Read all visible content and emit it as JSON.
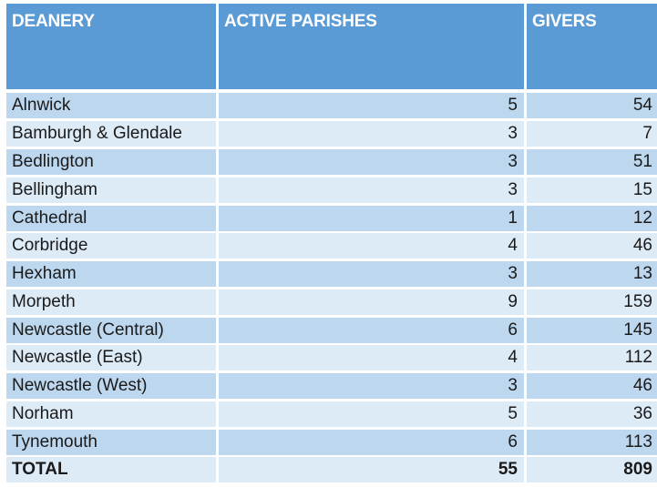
{
  "headers": {
    "deanery": "DEANERY",
    "active_parishes": "ACTIVE PARISHES",
    "givers": "GIVERS"
  },
  "rows": [
    {
      "deanery": "Alnwick",
      "active_parishes": "5",
      "givers": "54"
    },
    {
      "deanery": "Bamburgh & Glendale",
      "active_parishes": "3",
      "givers": "7"
    },
    {
      "deanery": "Bedlington",
      "active_parishes": "3",
      "givers": "51"
    },
    {
      "deanery": "Bellingham",
      "active_parishes": "3",
      "givers": "15"
    },
    {
      "deanery": "Cathedral",
      "active_parishes": "1",
      "givers": "12"
    },
    {
      "deanery": "Corbridge",
      "active_parishes": "4",
      "givers": "46"
    },
    {
      "deanery": "Hexham",
      "active_parishes": "3",
      "givers": "13"
    },
    {
      "deanery": "Morpeth",
      "active_parishes": "9",
      "givers": "159"
    },
    {
      "deanery": "Newcastle (Central)",
      "active_parishes": "6",
      "givers": "145"
    },
    {
      "deanery": "Newcastle (East)",
      "active_parishes": "4",
      "givers": "112"
    },
    {
      "deanery": "Newcastle (West)",
      "active_parishes": "3",
      "givers": "46"
    },
    {
      "deanery": "Norham",
      "active_parishes": "5",
      "givers": "36"
    },
    {
      "deanery": "Tynemouth",
      "active_parishes": "6",
      "givers": "113"
    }
  ],
  "total": {
    "label": "TOTAL",
    "active_parishes": "55",
    "givers": "809"
  },
  "colors": {
    "header_bg": "#5b9bd5",
    "row_dark": "#bdd7ee",
    "row_light": "#ddebf7"
  }
}
